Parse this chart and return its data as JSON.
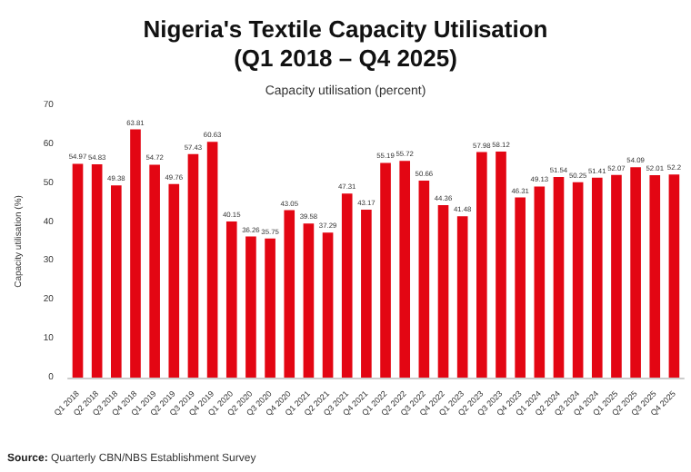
{
  "chart_data": {
    "type": "bar",
    "title": "Nigeria's Textile Capacity Utilisation\n(Q1 2018 – Q4 2025)",
    "subtitle": "Capacity utilisation (percent)",
    "ylabel": "Capacity utilisation (%)",
    "categories": [
      "Q1 2018",
      "Q2 2018",
      "Q3 2018",
      "Q4 2018",
      "Q1 2019",
      "Q2 2019",
      "Q3 2019",
      "Q4 2019",
      "Q1 2020",
      "Q2 2020",
      "Q3 2020",
      "Q4 2020",
      "Q1 2021",
      "Q2 2021",
      "Q3 2021",
      "Q4 2021",
      "Q1 2022",
      "Q2 2022",
      "Q3 2022",
      "Q4 2022",
      "Q1 2023",
      "Q2 2023",
      "Q3 2023",
      "Q4 2023",
      "Q1 2024",
      "Q2 2024",
      "Q3 2024",
      "Q4 2024",
      "Q1 2025",
      "Q2 2025",
      "Q3 2025",
      "Q4 2025"
    ],
    "values": [
      54.97,
      54.83,
      49.38,
      63.81,
      54.72,
      49.76,
      57.43,
      60.63,
      40.15,
      36.26,
      35.75,
      43.05,
      39.58,
      37.29,
      47.31,
      43.17,
      55.19,
      55.72,
      50.66,
      44.36,
      41.48,
      57.98,
      58.12,
      46.31,
      49.13,
      51.54,
      50.25,
      51.41,
      52.07,
      54.09,
      52.01,
      52.2
    ],
    "color": "#e30613",
    "ylim": [
      0,
      70
    ],
    "yticks": [
      0,
      10,
      20,
      30,
      40,
      50,
      60,
      70
    ],
    "grid": false,
    "data_labels": true,
    "annotations": [
      "Source: Quarterly CBN/NBS Establishment Survey"
    ]
  }
}
